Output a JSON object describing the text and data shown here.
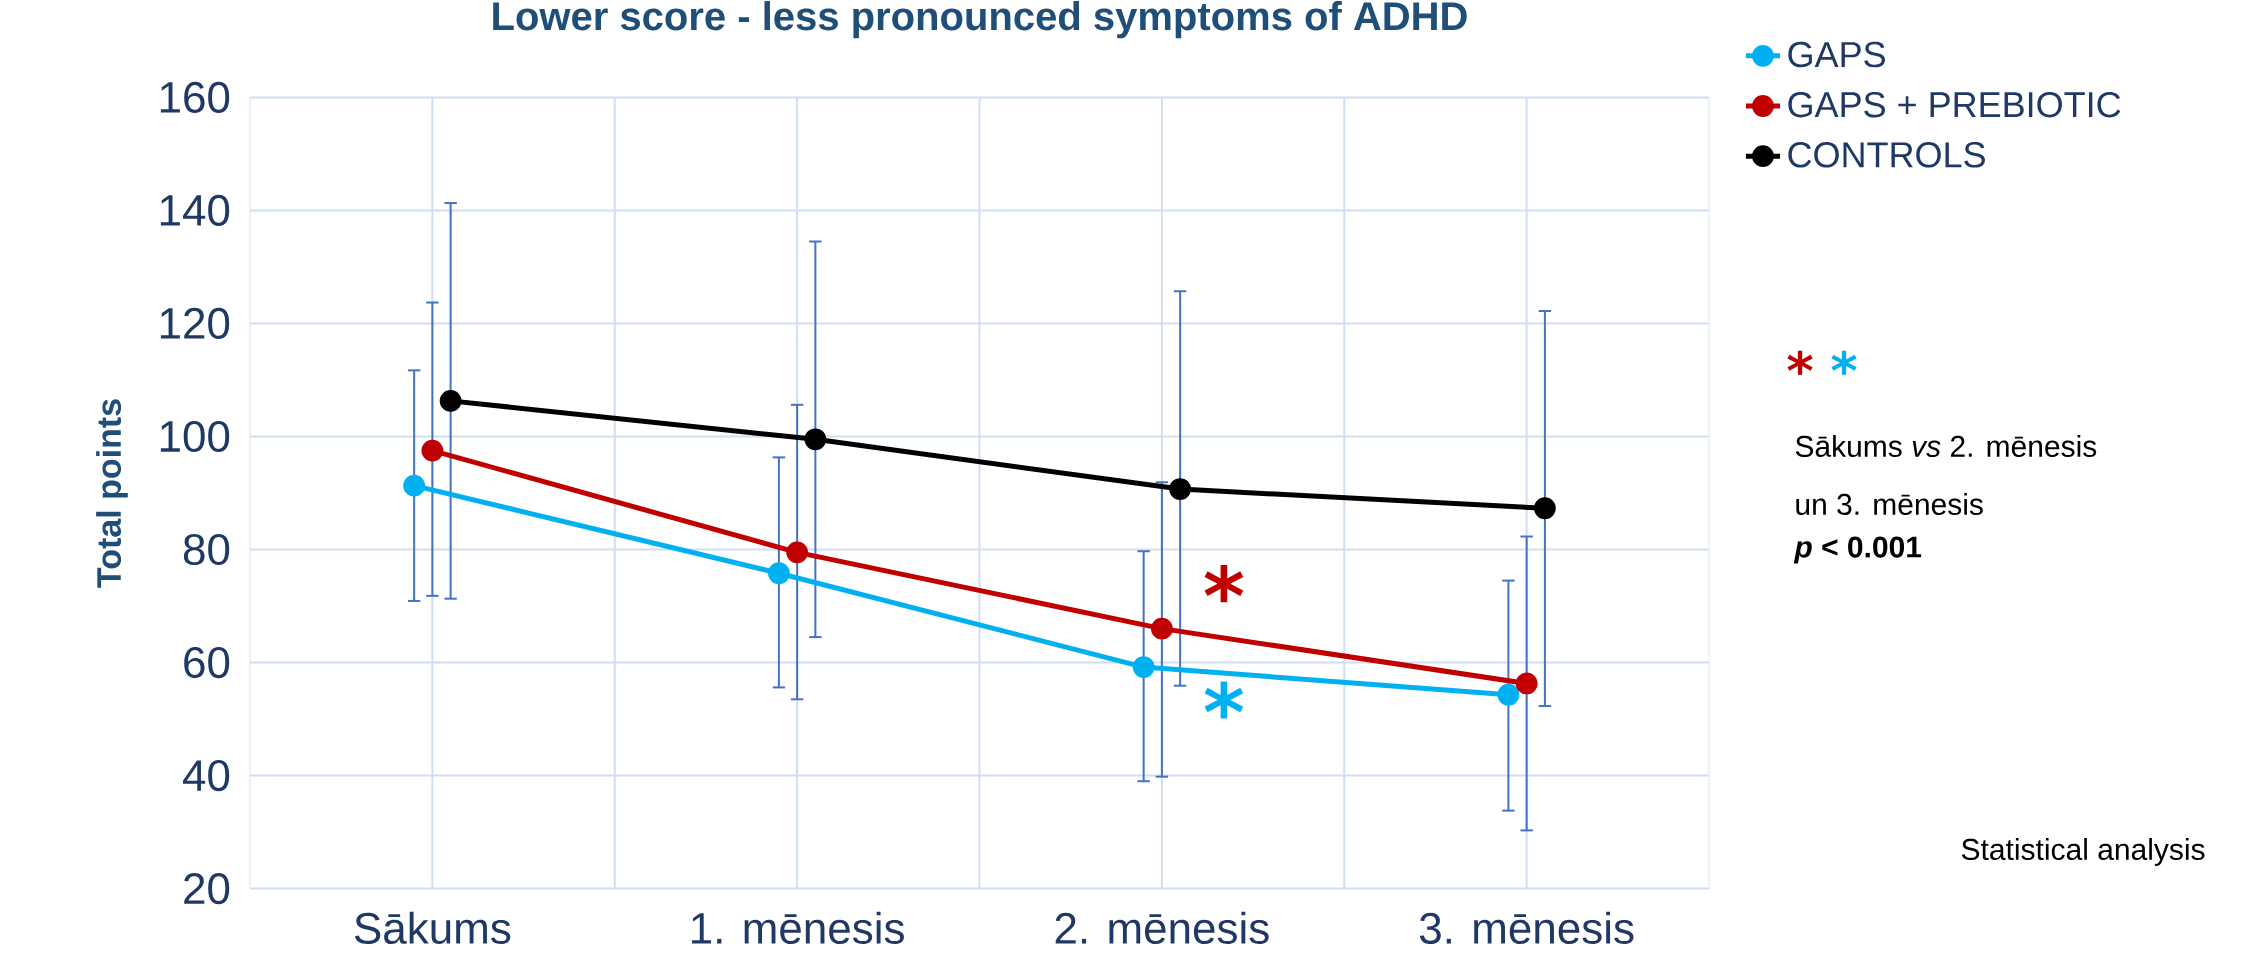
{
  "chart_data": {
    "type": "line",
    "title": "Lower score - less pronounced symptoms of ADHD",
    "ylabel": "Total points",
    "categories": [
      "Sākums",
      "1. mēnesis",
      "2. mēnesis",
      "3. mēnesis"
    ],
    "series": [
      {
        "name": "GAPS",
        "color": "#00b0f0",
        "values": [
          91.3,
          75.8,
          59.2,
          54.3
        ],
        "errors": [
          [
            70.9,
            111.7
          ],
          [
            55.6,
            96.3
          ],
          [
            39.0,
            79.7
          ],
          [
            33.8,
            74.5
          ]
        ]
      },
      {
        "name": "GAPS + PREBIOTIC",
        "color": "#c00000",
        "values": [
          97.5,
          79.5,
          66.0,
          56.3
        ],
        "errors": [
          [
            71.8,
            123.7
          ],
          [
            53.5,
            105.6
          ],
          [
            39.8,
            91.9
          ],
          [
            30.3,
            82.3
          ]
        ]
      },
      {
        "name": "CONTROLS",
        "color": "#000000",
        "values": [
          106.3,
          99.5,
          90.7,
          87.3
        ],
        "errors": [
          [
            71.3,
            141.3
          ],
          [
            64.5,
            134.5
          ],
          [
            55.9,
            125.7
          ],
          [
            52.3,
            122.2
          ]
        ]
      }
    ],
    "ylim": [
      20,
      160
    ],
    "yticks": [
      20,
      40,
      60,
      80,
      100,
      120,
      140,
      160
    ],
    "grid": true,
    "legend": "top right",
    "marker": "circle",
    "line_style": "solid",
    "annotations": [
      {
        "text": "*",
        "x": "2. mēnesis",
        "y": 72
      },
      {
        "text": "*",
        "x": "2. mēnesis",
        "y": 51.4
      },
      "*",
      "*",
      "Sākums *vs* 2. mēnesis",
      "un 3. mēnesis",
      "*p* < 0.001",
      "Statistical analysis"
    ]
  }
}
